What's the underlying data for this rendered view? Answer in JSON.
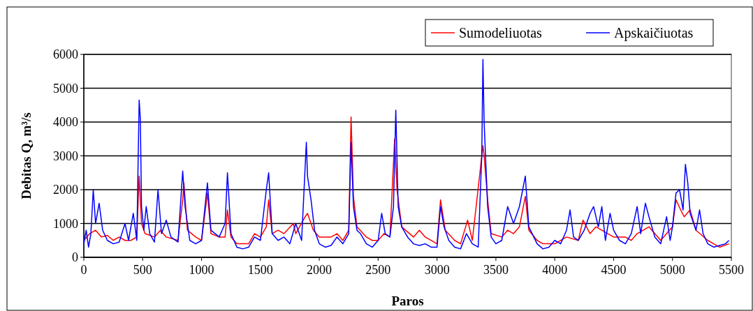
{
  "chart_data": {
    "type": "line",
    "xlabel": "Paros",
    "ylabel": "Debitas Q, m³/s",
    "xlim": [
      0,
      5500
    ],
    "ylim": [
      0,
      6000
    ],
    "xticks": [
      0,
      500,
      1000,
      1500,
      2000,
      2500,
      3000,
      3500,
      4000,
      4500,
      5000,
      5500
    ],
    "yticks": [
      0,
      1000,
      2000,
      3000,
      4000,
      5000,
      6000
    ],
    "grid": "y",
    "legend": "top right",
    "marker": "none",
    "line_style": "solid",
    "series": [
      {
        "name": "Sumodeliuotas",
        "color": "#ff0000",
        "x": [
          0,
          50,
          100,
          150,
          200,
          250,
          300,
          350,
          400,
          450,
          470,
          490,
          520,
          600,
          650,
          700,
          800,
          840,
          850,
          880,
          950,
          1000,
          1050,
          1080,
          1150,
          1200,
          1220,
          1250,
          1300,
          1400,
          1450,
          1500,
          1550,
          1570,
          1600,
          1650,
          1700,
          1780,
          1800,
          1880,
          1900,
          1950,
          2000,
          2100,
          2150,
          2200,
          2250,
          2270,
          2290,
          2320,
          2400,
          2450,
          2500,
          2550,
          2600,
          2640,
          2660,
          2700,
          2800,
          2850,
          2900,
          3000,
          3030,
          3070,
          3150,
          3200,
          3260,
          3300,
          3390,
          3400,
          3430,
          3460,
          3550,
          3600,
          3650,
          3700,
          3750,
          3780,
          3850,
          3900,
          4000,
          4100,
          4200,
          4240,
          4300,
          4350,
          4400,
          4450,
          4500,
          4600,
          4650,
          4700,
          4800,
          4850,
          4900,
          4950,
          5000,
          5030,
          5070,
          5100,
          5150,
          5200,
          5300,
          5400,
          5480
        ],
        "values": [
          500,
          700,
          800,
          600,
          650,
          500,
          600,
          500,
          500,
          600,
          2400,
          1000,
          700,
          600,
          800,
          600,
          500,
          1700,
          2200,
          800,
          600,
          500,
          1900,
          700,
          600,
          600,
          1400,
          600,
          400,
          400,
          700,
          600,
          900,
          1700,
          700,
          800,
          700,
          1000,
          700,
          1200,
          1300,
          800,
          600,
          600,
          700,
          500,
          800,
          4150,
          1800,
          900,
          600,
          500,
          500,
          700,
          600,
          3500,
          2000,
          900,
          600,
          800,
          600,
          400,
          1700,
          800,
          500,
          400,
          1100,
          500,
          3300,
          3000,
          1700,
          700,
          600,
          800,
          700,
          900,
          1800,
          800,
          500,
          400,
          400,
          600,
          500,
          1100,
          700,
          900,
          800,
          700,
          600,
          600,
          500,
          700,
          900,
          700,
          500,
          700,
          900,
          1700,
          1400,
          1200,
          1400,
          800,
          500,
          300,
          400
        ]
      },
      {
        "name": "Apskaičiuotas",
        "color": "#0000ff",
        "x": [
          0,
          20,
          40,
          60,
          80,
          100,
          130,
          160,
          200,
          250,
          300,
          350,
          380,
          420,
          450,
          470,
          480,
          490,
          510,
          530,
          560,
          600,
          630,
          660,
          700,
          740,
          800,
          840,
          860,
          900,
          950,
          1000,
          1050,
          1080,
          1150,
          1200,
          1220,
          1250,
          1300,
          1350,
          1400,
          1450,
          1500,
          1550,
          1570,
          1600,
          1650,
          1700,
          1750,
          1800,
          1850,
          1890,
          1900,
          1930,
          1960,
          2000,
          2050,
          2100,
          2150,
          2200,
          2250,
          2270,
          2290,
          2320,
          2350,
          2400,
          2450,
          2500,
          2530,
          2560,
          2600,
          2630,
          2650,
          2670,
          2700,
          2750,
          2800,
          2850,
          2900,
          2950,
          3000,
          3030,
          3060,
          3100,
          3150,
          3200,
          3250,
          3300,
          3350,
          3380,
          3390,
          3400,
          3430,
          3460,
          3500,
          3550,
          3600,
          3650,
          3700,
          3750,
          3780,
          3850,
          3900,
          3950,
          4000,
          4050,
          4100,
          4130,
          4160,
          4200,
          4250,
          4300,
          4330,
          4370,
          4400,
          4430,
          4470,
          4500,
          4550,
          4600,
          4650,
          4700,
          4730,
          4770,
          4800,
          4850,
          4900,
          4950,
          4980,
          5000,
          5030,
          5060,
          5090,
          5110,
          5130,
          5150,
          5200,
          5230,
          5260,
          5300,
          5350,
          5400,
          5450,
          5480
        ],
        "values": [
          400,
          800,
          300,
          700,
          2000,
          1000,
          1600,
          800,
          500,
          400,
          450,
          1000,
          500,
          1300,
          500,
          4650,
          4100,
          1500,
          800,
          1500,
          700,
          450,
          2000,
          700,
          1100,
          600,
          450,
          2550,
          1500,
          500,
          400,
          500,
          2200,
          800,
          600,
          1000,
          2500,
          700,
          300,
          250,
          300,
          600,
          500,
          2000,
          2500,
          700,
          500,
          600,
          400,
          1000,
          500,
          3400,
          2400,
          1700,
          800,
          400,
          300,
          350,
          600,
          400,
          700,
          3400,
          1500,
          800,
          700,
          400,
          300,
          500,
          1300,
          700,
          600,
          1500,
          4350,
          1500,
          900,
          600,
          400,
          350,
          400,
          300,
          300,
          1500,
          900,
          500,
          300,
          250,
          700,
          400,
          300,
          3000,
          5850,
          4000,
          1500,
          600,
          400,
          500,
          1500,
          1000,
          1500,
          2400,
          900,
          400,
          250,
          300,
          500,
          400,
          800,
          1400,
          600,
          500,
          800,
          1300,
          1500,
          900,
          1500,
          500,
          1300,
          800,
          500,
          400,
          700,
          1500,
          700,
          1600,
          1200,
          600,
          400,
          1200,
          500,
          900,
          1900,
          2000,
          1400,
          2750,
          2200,
          1300,
          800,
          1400,
          700,
          400,
          300,
          350,
          400,
          500
        ]
      }
    ]
  }
}
